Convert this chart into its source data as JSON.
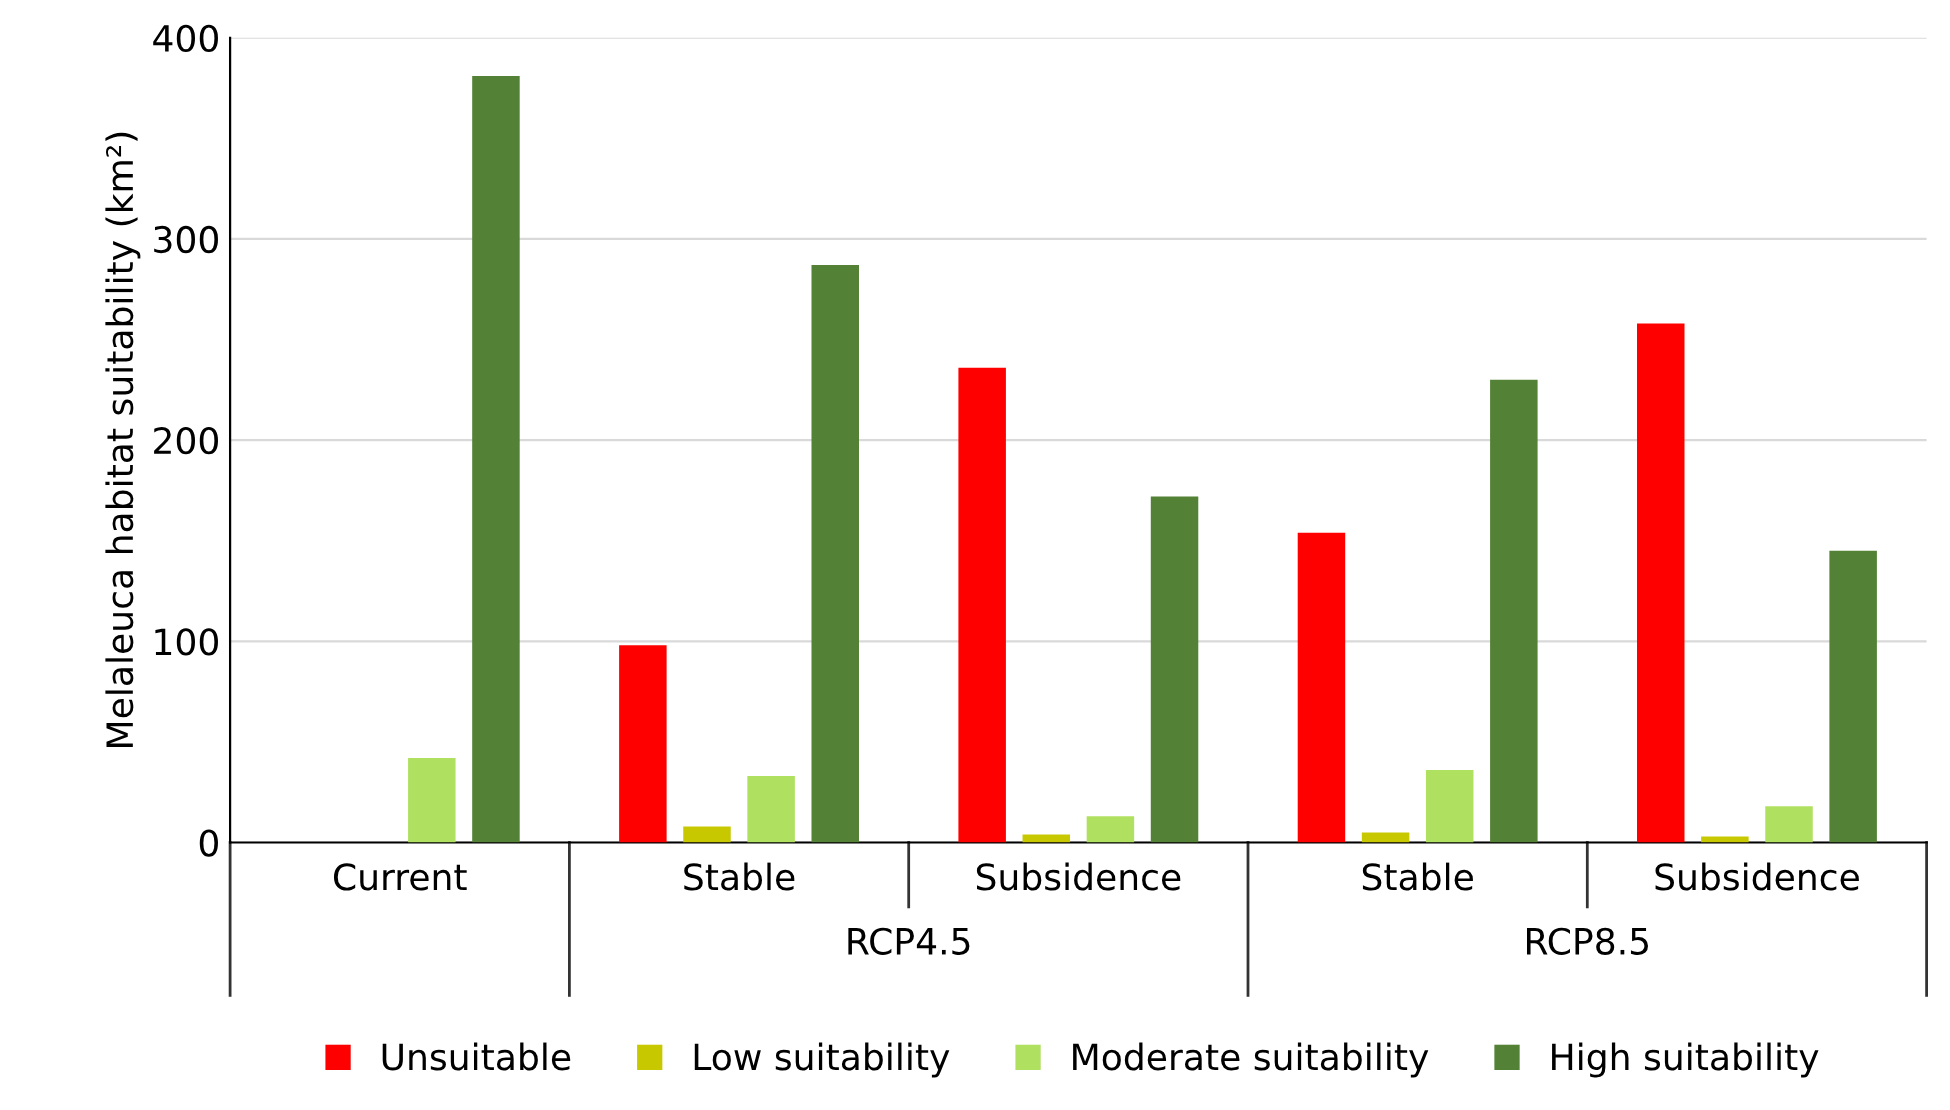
{
  "chart_data": {
    "type": "bar",
    "ylabel": "Melaleuca habitat suitability (km²)",
    "categories": [
      "Current",
      "Stable",
      "Subsidence",
      "Stable",
      "Subsidence"
    ],
    "annotations": [
      "RCP4.5",
      "RCP8.5"
    ],
    "series": [
      {
        "name": "Unsuitable",
        "color": "#ff0000",
        "values": [
          0,
          98,
          236,
          154,
          258
        ]
      },
      {
        "name": "Low suitability",
        "color": "#c8c800",
        "values": [
          0,
          8,
          4,
          5,
          3
        ]
      },
      {
        "name": "Moderate suitability",
        "color": "#b0e060",
        "values": [
          42,
          33,
          13,
          36,
          18
        ]
      },
      {
        "name": "High suitability",
        "color": "#538135",
        "values": [
          381,
          287,
          172,
          230,
          145
        ]
      }
    ],
    "ylim": [
      0,
      400
    ],
    "yticks": [
      0,
      100,
      200,
      300,
      400
    ],
    "grid": "y",
    "legend": "bottom"
  }
}
